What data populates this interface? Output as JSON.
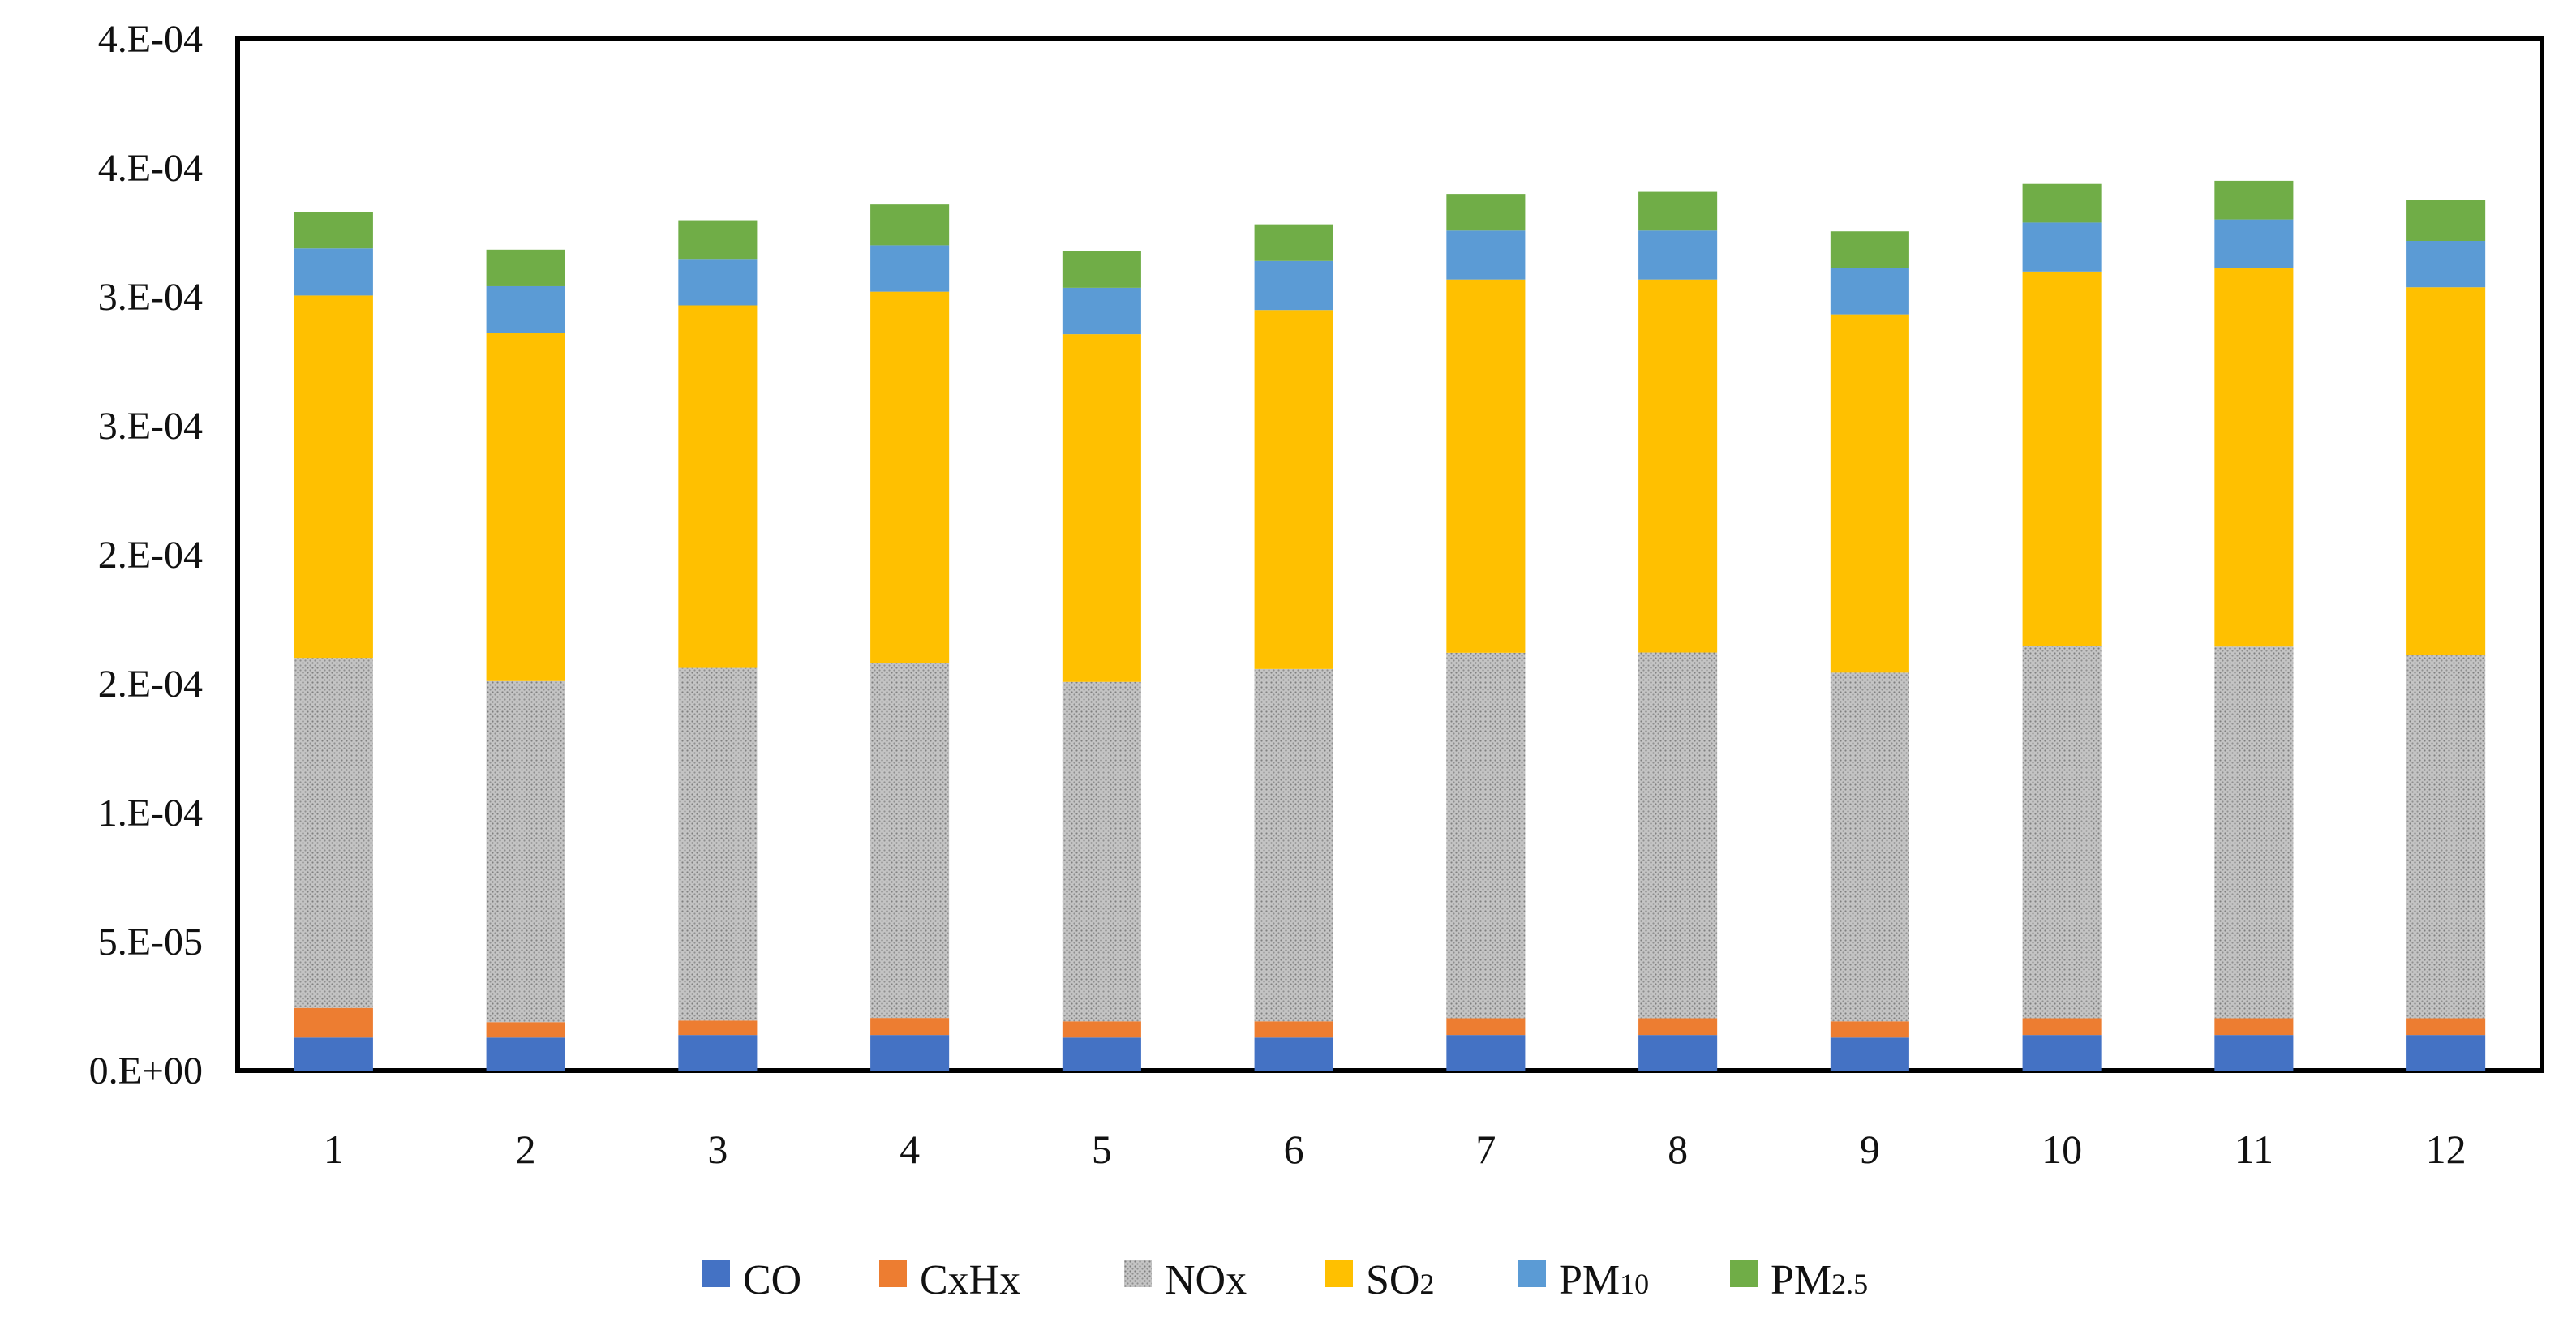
{
  "chart_data": {
    "type": "bar",
    "stacked": true,
    "title": "",
    "xlabel": "",
    "ylabel": "",
    "ylim": [
      0,
      0.0004
    ],
    "categories": [
      "1",
      "2",
      "3",
      "4",
      "5",
      "6",
      "7",
      "8",
      "9",
      "10",
      "11",
      "12"
    ],
    "y_tick_values": [
      0,
      5e-05,
      0.0001,
      0.00015,
      0.0002,
      0.00025,
      0.0003,
      0.00035,
      0.0004
    ],
    "y_tick_labels": [
      "0.E+00",
      "5.E-05",
      "1.E-04",
      "2.E-04",
      "2.E-04",
      "3.E-04",
      "3.E-04",
      "4.E-04",
      "4.E-04"
    ],
    "grid": false,
    "legend_position": "bottom-center",
    "series": [
      {
        "name": "CO",
        "label_main": "CO",
        "label_sub": "",
        "color": "#4472C4",
        "pattern": "solid",
        "values": [
          1.28e-05,
          1.28e-05,
          1.38e-05,
          1.38e-05,
          1.28e-05,
          1.28e-05,
          1.38e-05,
          1.38e-05,
          1.28e-05,
          1.38e-05,
          1.38e-05,
          1.38e-05
        ]
      },
      {
        "name": "CxHx",
        "label_main": "CxHx",
        "label_sub": "",
        "color": "#ED7D31",
        "pattern": "solid",
        "values": [
          1.15e-05,
          6e-06,
          5.6e-06,
          6.6e-06,
          6.3e-06,
          6.3e-06,
          6.5e-06,
          6.5e-06,
          6.3e-06,
          6.5e-06,
          6.5e-06,
          6.5e-06
        ]
      },
      {
        "name": "NOx",
        "label_main": "NOx",
        "label_sub": "",
        "color": "#A5A5A5",
        "pattern": "dotted",
        "values": [
          0.0001357,
          0.0001322,
          0.0001367,
          0.0001376,
          0.0001316,
          0.0001366,
          0.0001417,
          0.0001418,
          0.0001352,
          0.0001442,
          0.0001441,
          0.0001407
        ]
      },
      {
        "name": "SO2",
        "label_main": "SO",
        "label_sub": "2",
        "color": "#FFC000",
        "pattern": "solid",
        "values": [
          0.0001405,
          0.0001351,
          0.0001406,
          0.000144,
          0.0001348,
          0.0001392,
          0.0001447,
          0.0001446,
          0.0001389,
          0.0001453,
          0.0001466,
          0.0001427
        ]
      },
      {
        "name": "PM10",
        "label_main": "PM",
        "label_sub": "10",
        "color": "#5B9BD5",
        "pattern": "solid",
        "values": [
          1.83e-05,
          1.8e-05,
          1.8e-05,
          1.8e-05,
          1.8e-05,
          1.9e-05,
          1.9e-05,
          1.9e-05,
          1.8e-05,
          1.9e-05,
          1.9e-05,
          1.8e-05
        ]
      },
      {
        "name": "PM2.5",
        "label_main": "PM",
        "label_sub": "2.5",
        "color": "#70AD47",
        "pattern": "solid",
        "values": [
          1.42e-05,
          1.42e-05,
          1.5e-05,
          1.58e-05,
          1.42e-05,
          1.42e-05,
          1.42e-05,
          1.5e-05,
          1.42e-05,
          1.5e-05,
          1.5e-05,
          1.58e-05
        ]
      }
    ]
  }
}
